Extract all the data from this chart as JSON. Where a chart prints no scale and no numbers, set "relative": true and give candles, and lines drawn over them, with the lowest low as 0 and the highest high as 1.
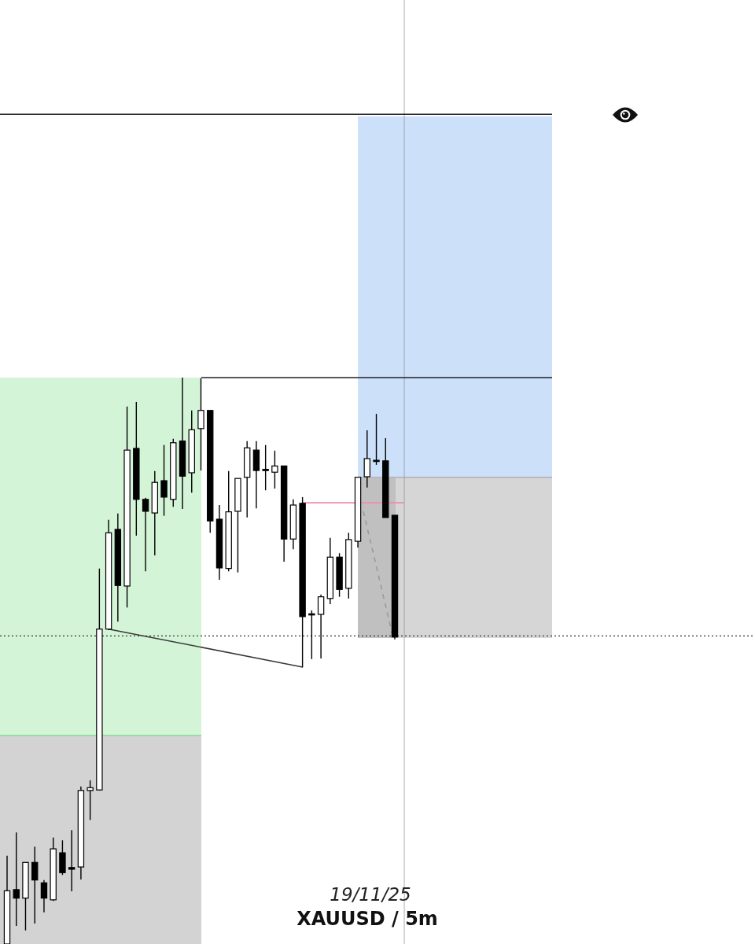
{
  "chart_data": {
    "type": "candlestick",
    "title": "XAUUSD / 5m",
    "subtitle": "19/11/25",
    "relative": true,
    "categories": [
      null,
      null,
      null,
      null,
      null,
      null,
      null,
      null,
      null,
      null,
      null,
      null,
      null,
      null,
      null,
      null,
      null,
      null,
      null,
      null,
      null,
      null,
      null,
      null,
      null,
      null,
      null,
      null,
      null,
      null,
      null,
      null,
      null,
      null,
      null,
      null,
      null,
      null,
      null,
      null,
      null,
      null,
      null
    ],
    "ohlc": [
      [
        0,
        0.156,
        0,
        0.094
      ],
      [
        0.096,
        0.197,
        0.032,
        0.081
      ],
      [
        0.081,
        0.144,
        0.024,
        0.144
      ],
      [
        0.144,
        0.172,
        0.036,
        0.113
      ],
      [
        0.108,
        0.113,
        0.056,
        0.081
      ],
      [
        0.078,
        0.188,
        0.076,
        0.168
      ],
      [
        0.161,
        0.183,
        0.122,
        0.126
      ],
      [
        0.135,
        0.201,
        0.093,
        0.132
      ],
      [
        0.136,
        0.278,
        0.114,
        0.271
      ],
      [
        0.271,
        0.289,
        0.219,
        0.276
      ],
      [
        0.272,
        0.663,
        0.271,
        0.556
      ],
      [
        0.556,
        0.749,
        0.554,
        0.726
      ],
      [
        0.732,
        0.76,
        0.569,
        0.633
      ],
      [
        0.632,
        0.949,
        0.594,
        0.872
      ],
      [
        0.875,
        0.957,
        0.721,
        0.785
      ],
      [
        0.785,
        0.788,
        0.658,
        0.764
      ],
      [
        0.761,
        0.835,
        0.686,
        0.815
      ],
      [
        0.818,
        0.881,
        0.756,
        0.789
      ],
      [
        0.785,
        0.892,
        0.772,
        0.885
      ],
      [
        0.888,
        1,
        0.768,
        0.826
      ],
      [
        0.832,
        0.942,
        0.797,
        0.908
      ],
      [
        0.91,
        0.999,
        0.836,
        0.942
      ],
      [
        0.942,
        0.942,
        0.726,
        0.747
      ],
      [
        0.75,
        0.775,
        0.643,
        0.664
      ],
      [
        0.663,
        0.835,
        0.658,
        0.763
      ],
      [
        0.764,
        0.822,
        0.656,
        0.822
      ],
      [
        0.824,
        0.888,
        0.753,
        0.876
      ],
      [
        0.872,
        0.888,
        0.769,
        0.836
      ],
      [
        0.838,
        0.881,
        0.801,
        0.836
      ],
      [
        0.833,
        0.871,
        0.804,
        0.844
      ],
      [
        0.844,
        0.844,
        0.675,
        0.715
      ],
      [
        0.715,
        0.785,
        0.697,
        0.775
      ],
      [
        0.778,
        0.789,
        0.489,
        0.578
      ],
      [
        0.583,
        0.589,
        0.503,
        0.582
      ],
      [
        0.582,
        0.617,
        0.504,
        0.613
      ],
      [
        0.61,
        0.717,
        0.6,
        0.683
      ],
      [
        0.683,
        0.69,
        0.613,
        0.626
      ],
      [
        0.628,
        0.726,
        0.61,
        0.714
      ],
      [
        0.711,
        0.824,
        0.7,
        0.824
      ],
      [
        0.825,
        0.907,
        0.806,
        0.857
      ],
      [
        0.854,
        0.936,
        0.846,
        0.853
      ],
      [
        0.853,
        0.893,
        0.753,
        0.753
      ],
      [
        0.757,
        0.757,
        0.538,
        0.542
      ]
    ],
    "series": [
      {
        "type": "line",
        "color": "#3a3a3a",
        "values": [
          null,
          null,
          null,
          null,
          null,
          null,
          null,
          null,
          null,
          null,
          null,
          0.556,
          null,
          null,
          null,
          null,
          null,
          null,
          null,
          null,
          null,
          null,
          null,
          null,
          null,
          null,
          null,
          null,
          null,
          null,
          null,
          null,
          0.489,
          null,
          null,
          null,
          null,
          null,
          null,
          null,
          null,
          null,
          null
        ]
      }
    ],
    "ref_lines": [
      {
        "axis": "y",
        "value": 1.465,
        "color": "#222222",
        "line_style": "solid"
      },
      {
        "axis": "y",
        "value": 1,
        "color": "#222222",
        "line_style": "solid"
      },
      {
        "axis": "y",
        "value": 0.779,
        "color": "#f28aa9",
        "line_style": "solid"
      },
      {
        "axis": "y",
        "value": 0.544,
        "color": "#333333",
        "line_style": "dotted"
      }
    ]
  }
}
